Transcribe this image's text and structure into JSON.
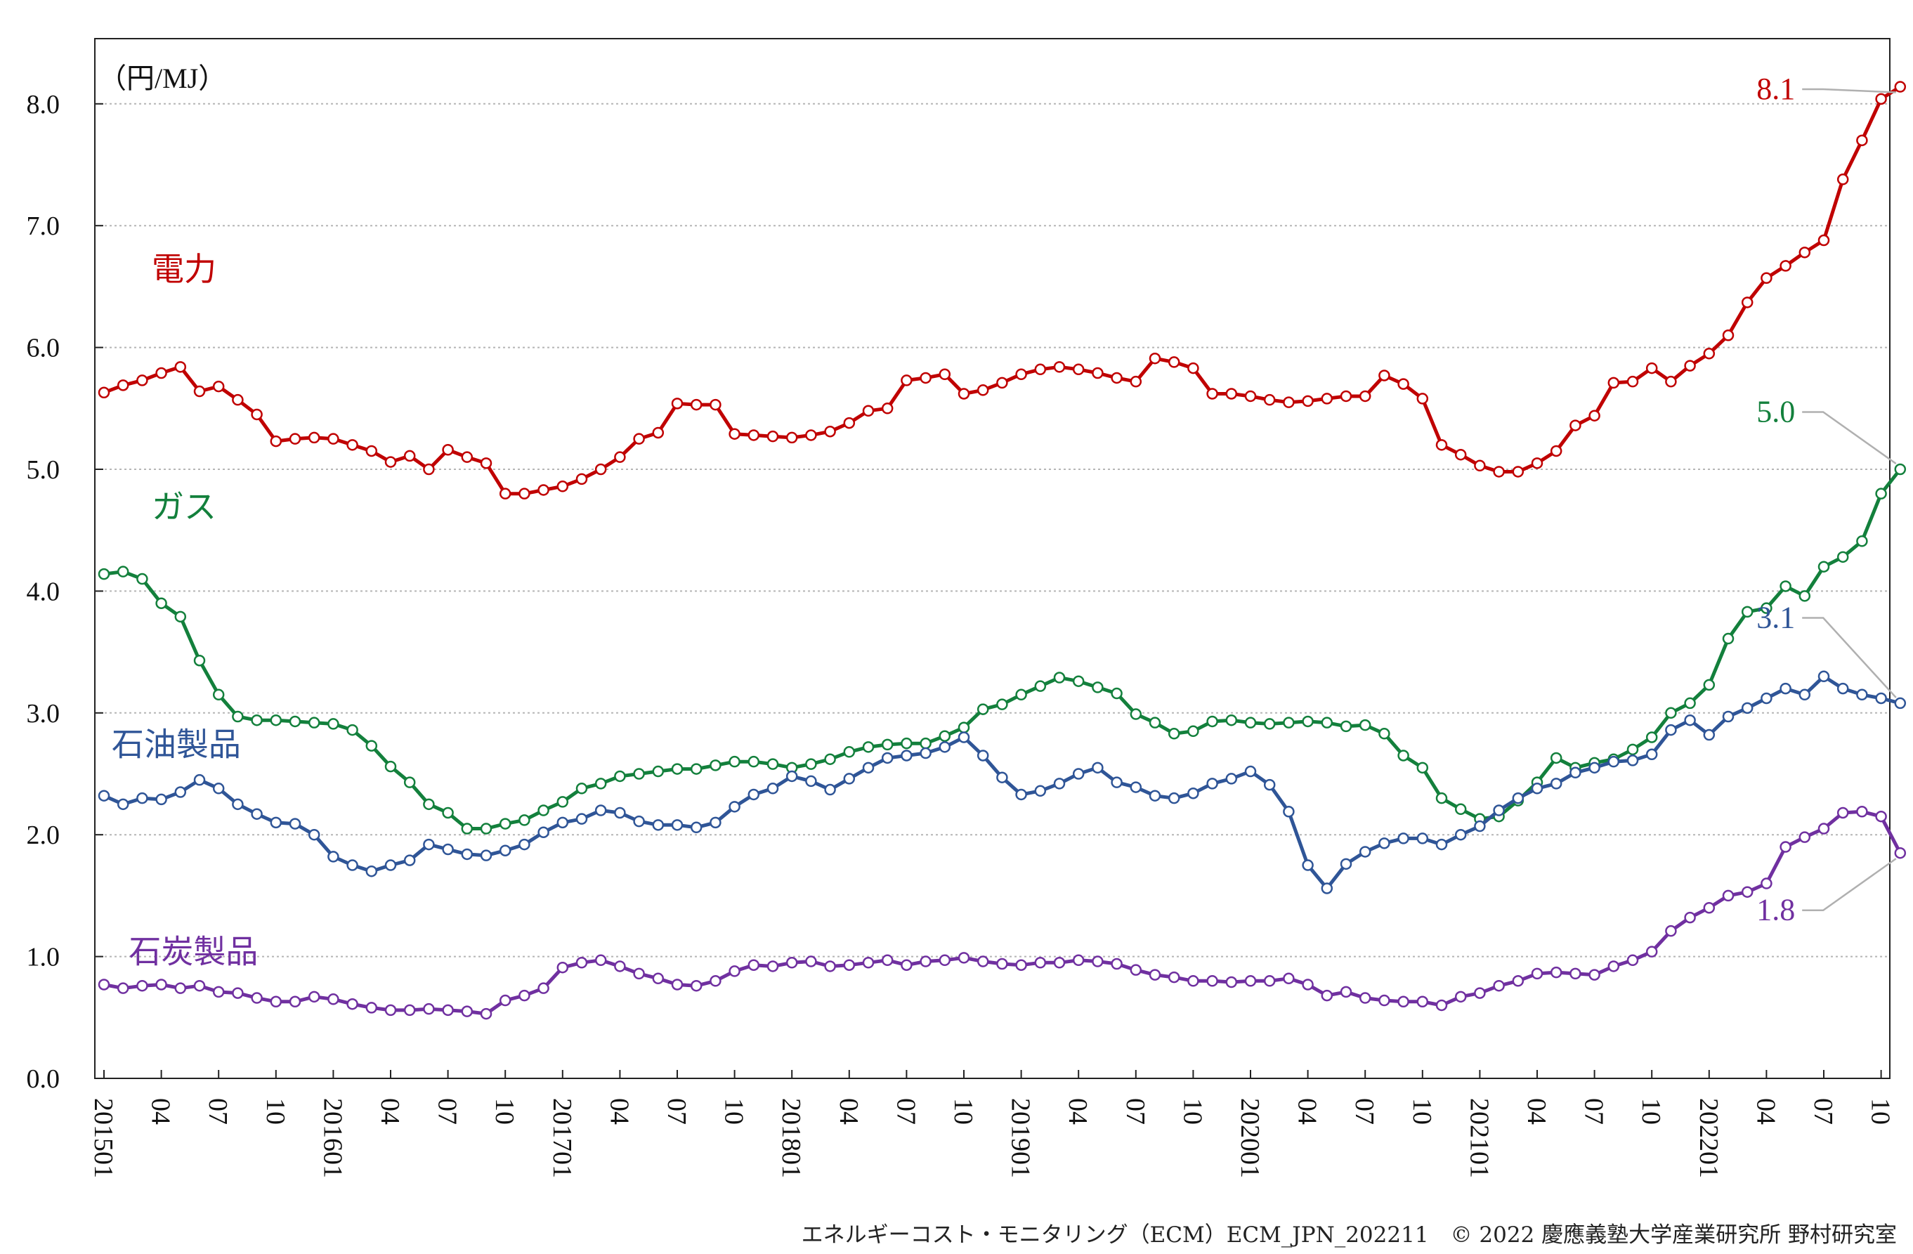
{
  "footer": "エネルギーコスト・モニタリング（ECM）ECM_JPN_202211　© 2022 慶應義塾大学産業研究所 野村研究室",
  "chart_data": {
    "type": "line",
    "unit": "（円/MJ）",
    "ylim": [
      0,
      8.5
    ],
    "yticks": [
      "0.0",
      "1.0",
      "2.0",
      "3.0",
      "4.0",
      "5.0",
      "6.0",
      "7.0",
      "8.0"
    ],
    "grid": "horizontal-dotted",
    "xticks": [
      {
        "i": 0,
        "label": "201501"
      },
      {
        "i": 3,
        "label": "04"
      },
      {
        "i": 6,
        "label": "07"
      },
      {
        "i": 9,
        "label": "10"
      },
      {
        "i": 12,
        "label": "201601"
      },
      {
        "i": 15,
        "label": "04"
      },
      {
        "i": 18,
        "label": "07"
      },
      {
        "i": 21,
        "label": "10"
      },
      {
        "i": 24,
        "label": "201701"
      },
      {
        "i": 27,
        "label": "04"
      },
      {
        "i": 30,
        "label": "07"
      },
      {
        "i": 33,
        "label": "10"
      },
      {
        "i": 36,
        "label": "201801"
      },
      {
        "i": 39,
        "label": "04"
      },
      {
        "i": 42,
        "label": "07"
      },
      {
        "i": 45,
        "label": "10"
      },
      {
        "i": 48,
        "label": "201901"
      },
      {
        "i": 51,
        "label": "04"
      },
      {
        "i": 54,
        "label": "07"
      },
      {
        "i": 57,
        "label": "10"
      },
      {
        "i": 60,
        "label": "202001"
      },
      {
        "i": 63,
        "label": "04"
      },
      {
        "i": 66,
        "label": "07"
      },
      {
        "i": 69,
        "label": "10"
      },
      {
        "i": 72,
        "label": "202101"
      },
      {
        "i": 75,
        "label": "04"
      },
      {
        "i": 78,
        "label": "07"
      },
      {
        "i": 81,
        "label": "10"
      },
      {
        "i": 84,
        "label": "202201"
      },
      {
        "i": 87,
        "label": "04"
      },
      {
        "i": 90,
        "label": "07"
      },
      {
        "i": 93,
        "label": "10"
      }
    ],
    "series": [
      {
        "name": "電力",
        "color": "#c00000",
        "end_label": "8.1",
        "label_x": 2.5,
        "label_y": 6.55,
        "end_label_x": 88.5,
        "end_label_y": 8.12,
        "values": [
          5.63,
          5.69,
          5.73,
          5.79,
          5.84,
          5.64,
          5.68,
          5.57,
          5.45,
          5.23,
          5.25,
          5.26,
          5.25,
          5.2,
          5.15,
          5.06,
          5.11,
          5.0,
          5.16,
          5.1,
          5.05,
          4.8,
          4.8,
          4.83,
          4.86,
          4.92,
          5.0,
          5.1,
          5.25,
          5.3,
          5.54,
          5.53,
          5.53,
          5.29,
          5.28,
          5.27,
          5.26,
          5.28,
          5.31,
          5.38,
          5.48,
          5.5,
          5.73,
          5.75,
          5.78,
          5.62,
          5.65,
          5.71,
          5.78,
          5.82,
          5.84,
          5.82,
          5.79,
          5.75,
          5.72,
          5.91,
          5.88,
          5.83,
          5.62,
          5.62,
          5.6,
          5.57,
          5.55,
          5.56,
          5.58,
          5.6,
          5.6,
          5.77,
          5.7,
          5.58,
          5.2,
          5.12,
          5.03,
          4.98,
          4.98,
          5.05,
          5.15,
          5.36,
          5.44,
          5.71,
          5.72,
          5.83,
          5.72,
          5.85,
          5.95,
          6.1,
          6.37,
          6.57,
          6.67,
          6.78,
          6.88,
          7.38,
          7.7,
          8.04,
          8.14
        ]
      },
      {
        "name": "ガス",
        "color": "#13803c",
        "end_label": "5.0",
        "label_x": 2.5,
        "label_y": 4.6,
        "end_label_x": 88.5,
        "end_label_y": 5.47,
        "values": [
          4.14,
          4.16,
          4.1,
          3.9,
          3.79,
          3.43,
          3.15,
          2.97,
          2.94,
          2.94,
          2.93,
          2.92,
          2.91,
          2.86,
          2.73,
          2.56,
          2.43,
          2.25,
          2.18,
          2.05,
          2.05,
          2.09,
          2.12,
          2.2,
          2.27,
          2.38,
          2.42,
          2.48,
          2.5,
          2.52,
          2.54,
          2.54,
          2.57,
          2.6,
          2.6,
          2.58,
          2.55,
          2.58,
          2.62,
          2.68,
          2.72,
          2.74,
          2.75,
          2.75,
          2.81,
          2.88,
          3.03,
          3.07,
          3.15,
          3.22,
          3.29,
          3.26,
          3.21,
          3.16,
          2.99,
          2.92,
          2.83,
          2.85,
          2.93,
          2.94,
          2.92,
          2.91,
          2.92,
          2.93,
          2.92,
          2.89,
          2.9,
          2.83,
          2.65,
          2.55,
          2.3,
          2.21,
          2.13,
          2.15,
          2.28,
          2.43,
          2.63,
          2.55,
          2.59,
          2.62,
          2.7,
          2.8,
          3.0,
          3.08,
          3.23,
          3.61,
          3.83,
          3.86,
          4.04,
          3.96,
          4.2,
          4.28,
          4.41,
          4.8,
          5.0
        ]
      },
      {
        "name": "石油製品",
        "color": "#2f5597",
        "end_label": "3.1",
        "label_x": 0.4,
        "label_y": 2.65,
        "end_label_x": 88.5,
        "end_label_y": 3.78,
        "values": [
          2.32,
          2.25,
          2.3,
          2.29,
          2.35,
          2.45,
          2.38,
          2.25,
          2.17,
          2.1,
          2.09,
          2.0,
          1.82,
          1.75,
          1.7,
          1.75,
          1.79,
          1.92,
          1.88,
          1.84,
          1.83,
          1.87,
          1.92,
          2.02,
          2.1,
          2.13,
          2.2,
          2.18,
          2.11,
          2.08,
          2.08,
          2.06,
          2.1,
          2.23,
          2.33,
          2.38,
          2.48,
          2.44,
          2.37,
          2.46,
          2.55,
          2.63,
          2.65,
          2.67,
          2.72,
          2.8,
          2.65,
          2.47,
          2.33,
          2.36,
          2.42,
          2.5,
          2.55,
          2.43,
          2.39,
          2.32,
          2.3,
          2.34,
          2.42,
          2.46,
          2.52,
          2.41,
          2.19,
          1.75,
          1.56,
          1.76,
          1.86,
          1.93,
          1.97,
          1.97,
          1.92,
          2.0,
          2.07,
          2.2,
          2.3,
          2.38,
          2.42,
          2.51,
          2.55,
          2.6,
          2.61,
          2.66,
          2.86,
          2.94,
          2.82,
          2.97,
          3.04,
          3.12,
          3.2,
          3.15,
          3.3,
          3.2,
          3.15,
          3.12,
          3.08
        ]
      },
      {
        "name": "石炭製品",
        "color": "#7030a0",
        "end_label": "1.8",
        "label_x": 1.3,
        "label_y": 0.95,
        "end_label_x": 88.5,
        "end_label_y": 1.38,
        "values": [
          0.77,
          0.74,
          0.76,
          0.77,
          0.74,
          0.76,
          0.71,
          0.7,
          0.66,
          0.63,
          0.63,
          0.67,
          0.65,
          0.61,
          0.58,
          0.56,
          0.56,
          0.57,
          0.56,
          0.55,
          0.53,
          0.64,
          0.68,
          0.74,
          0.91,
          0.95,
          0.97,
          0.92,
          0.86,
          0.82,
          0.77,
          0.76,
          0.8,
          0.88,
          0.93,
          0.92,
          0.95,
          0.96,
          0.92,
          0.93,
          0.95,
          0.97,
          0.93,
          0.96,
          0.97,
          0.99,
          0.96,
          0.94,
          0.93,
          0.95,
          0.95,
          0.97,
          0.96,
          0.94,
          0.89,
          0.85,
          0.83,
          0.8,
          0.8,
          0.79,
          0.8,
          0.8,
          0.82,
          0.77,
          0.68,
          0.71,
          0.66,
          0.64,
          0.63,
          0.63,
          0.6,
          0.67,
          0.7,
          0.76,
          0.8,
          0.86,
          0.87,
          0.86,
          0.85,
          0.92,
          0.97,
          1.04,
          1.21,
          1.32,
          1.4,
          1.5,
          1.53,
          1.6,
          1.9,
          1.98,
          2.05,
          2.18,
          2.19,
          2.15,
          1.85
        ]
      }
    ]
  }
}
